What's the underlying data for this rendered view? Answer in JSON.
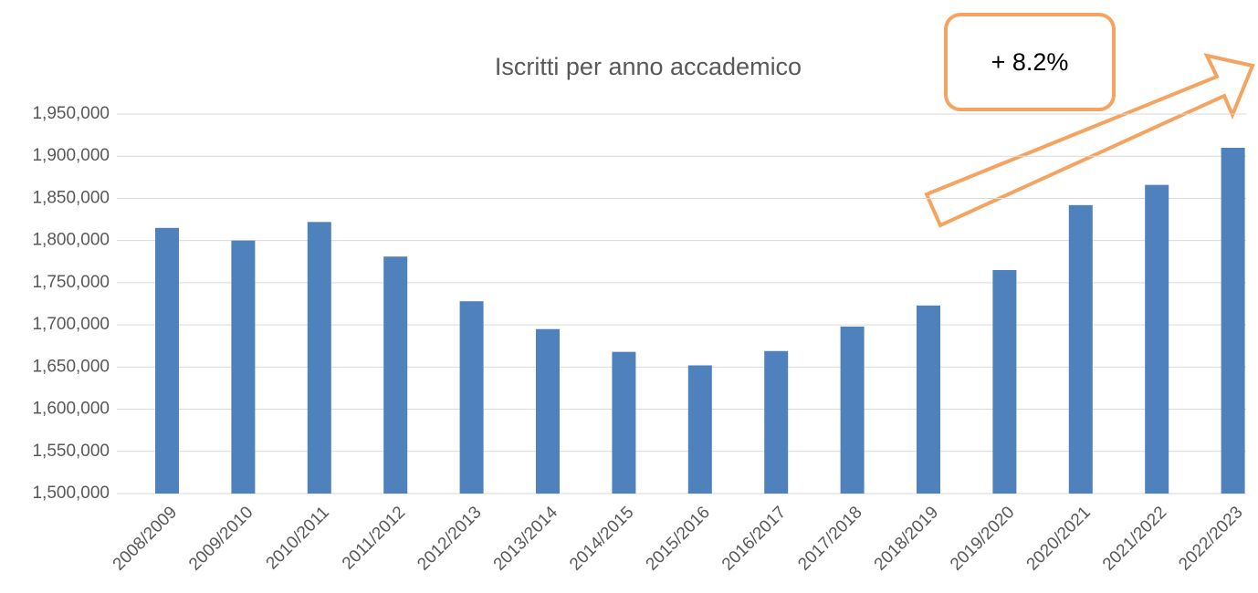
{
  "chart_data": {
    "type": "bar",
    "title": "Iscritti per anno accademico",
    "annotation": "+ 8.2%",
    "categories": [
      "2008/2009",
      "2009/2010",
      "2010/2011",
      "2011/2012",
      "2012/2013",
      "2013/2014",
      "2014/2015",
      "2015/2016",
      "2016/2017",
      "2017/2018",
      "2018/2019",
      "2019/2020",
      "2020/2021",
      "2021/2022",
      "2022/2023"
    ],
    "values": [
      1815000,
      1800000,
      1822000,
      1781000,
      1728000,
      1695000,
      1668000,
      1652000,
      1669000,
      1698000,
      1723000,
      1765000,
      1842000,
      1866000,
      1910000
    ],
    "color": "#4f81bd",
    "ylim": [
      1500000,
      1950000
    ],
    "yticks": [
      {
        "value": 1500000,
        "label": "1,500,000"
      },
      {
        "value": 1550000,
        "label": "1,550,000"
      },
      {
        "value": 1600000,
        "label": "1,600,000"
      },
      {
        "value": 1650000,
        "label": "1,650,000"
      },
      {
        "value": 1700000,
        "label": "1,700,000"
      },
      {
        "value": 1750000,
        "label": "1,750,000"
      },
      {
        "value": 1800000,
        "label": "1,800,000"
      },
      {
        "value": 1850000,
        "label": "1,850,000"
      },
      {
        "value": 1900000,
        "label": "1,900,000"
      },
      {
        "value": 1950000,
        "label": "1,950,000"
      }
    ],
    "grid": true
  }
}
